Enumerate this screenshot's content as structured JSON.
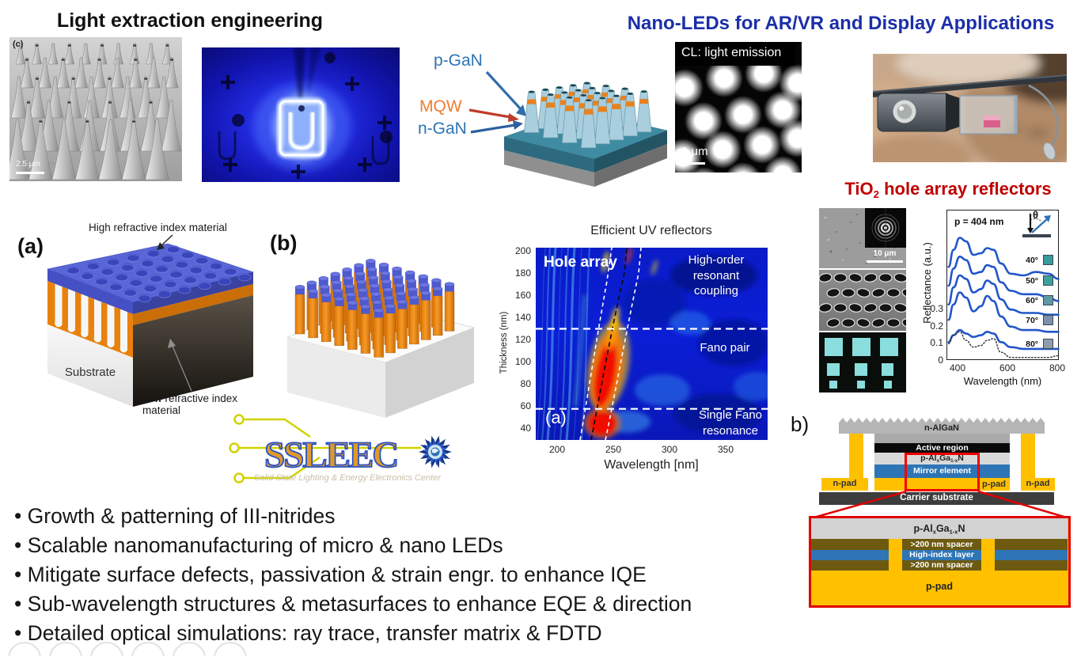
{
  "titles": {
    "left": "Light extraction engineering",
    "right": "Nano-LEDs for AR/VR and Display Applications",
    "tio2_base": "TiO",
    "tio2_sub": "2",
    "tio2_rest": " hole array reflectors"
  },
  "colors": {
    "right_title": "#1b2fa8",
    "tio2_title": "#c00000",
    "label_blue": "#2e74b5",
    "mqw_orange": "#ed7d31",
    "curve_blue": "#2156c8",
    "pad_yellow": "#ffc000",
    "mirror_blue": "#2e75b6",
    "spacer_olive": "#6d5a10",
    "heat_red": "#f01000",
    "cyan_squares": "#8adedd"
  },
  "sem_panel": {
    "label": "(c)",
    "scale": "2.5 μm"
  },
  "nanorod": {
    "p_gan": "p-GaN",
    "mqw": "MQW",
    "n_gan": "n-GaN"
  },
  "cl_panel": {
    "caption": "CL: light emission",
    "scale": "1 μm"
  },
  "tio2_panel": {
    "scale": "10 μm"
  },
  "structure_a": {
    "label": "(a)",
    "high": "High refractive index material",
    "low": "Low refractive index material",
    "substrate": "Substrate"
  },
  "structure_b": {
    "label": "(b)"
  },
  "ssleec": {
    "name": "SSLEEC",
    "tagline": "Solid State Lighting & Energy Electronics Center"
  },
  "device": {
    "label": "b)",
    "n_algan": "n-AlGaN",
    "active": "Active region",
    "p_algan": {
      "a": "p-Al",
      "b": "x",
      "c": "Ga",
      "d": "1-x",
      "e": "N"
    },
    "mirror": "Mirror element",
    "n_pad": "n-pad",
    "p_pad": "p-pad",
    "carrier": "Carrier substrate",
    "spacer_top": ">200 nm spacer",
    "high_index": "High-index layer",
    "spacer_bottom": ">200 nm spacer",
    "p_pad_big": "p-pad"
  },
  "bullets": [
    "Growth & patterning of III-nitrides",
    "Scalable nanomanufacturing of micro & nano LEDs",
    "Mitigate surface defects, passivation & strain engr. to enhance IQE",
    "Sub-wavelength structures & metasurfaces to enhance EQE & direction",
    "Detailed optical simulations: ray trace, transfer matrix & FDTD"
  ],
  "chart_data": [
    {
      "type": "heatmap",
      "title": "Efficient UV reflectors",
      "xlabel": "Wavelength [nm]",
      "ylabel": "Thickness (nm)",
      "xlim": [
        181,
        387
      ],
      "ylim": [
        30,
        203
      ],
      "xticks": [
        200,
        250,
        300,
        350
      ],
      "yticks": [
        40,
        60,
        80,
        100,
        120,
        140,
        160,
        180,
        200
      ],
      "annotations": {
        "array_type": "Hole array",
        "region_top_lines": [
          "High-order",
          "resonant",
          "coupling"
        ],
        "region_mid": "Fano pair",
        "region_bottom_lines": [
          "Single Fano",
          "resonance"
        ],
        "panel": "(a)"
      },
      "dashed_hlines_thickness_nm": [
        130,
        58
      ],
      "hot_region": {
        "wavelength_nm": [
          222,
          255
        ],
        "thickness_nm": [
          30,
          115
        ],
        "description": "high-reflectance (red) lobe following the Fano resonance branch"
      }
    },
    {
      "type": "line",
      "annotation": "p = 404 nm",
      "theta_symbol": "θ",
      "xlabel": "Wavelength (nm)",
      "ylabel": "Reflectance (a.u.)",
      "xticks": [
        400,
        600,
        800
      ],
      "yticks": [
        0,
        0.1,
        0.2,
        0.3
      ],
      "xlim": [
        355,
        805
      ],
      "ylim": [
        0,
        0.88
      ],
      "x": [
        360,
        380,
        405,
        430,
        460,
        490,
        515,
        540,
        570,
        610,
        660,
        710,
        760,
        800
      ],
      "series": [
        {
          "name": "40°",
          "swatch": "#3a9a9c",
          "values": [
            0.55,
            0.65,
            0.72,
            0.7,
            0.62,
            0.63,
            0.66,
            0.65,
            0.57,
            0.51,
            0.5,
            0.52,
            0.51,
            0.48
          ]
        },
        {
          "name": "50°",
          "swatch": "#40a0a0",
          "values": [
            0.44,
            0.54,
            0.61,
            0.59,
            0.51,
            0.52,
            0.56,
            0.55,
            0.46,
            0.41,
            0.39,
            0.39,
            0.37,
            0.35
          ]
        },
        {
          "name": "60°",
          "swatch": "#5e99a4",
          "values": [
            0.33,
            0.43,
            0.5,
            0.48,
            0.4,
            0.42,
            0.47,
            0.45,
            0.36,
            0.3,
            0.28,
            0.28,
            0.27,
            0.27
          ]
        },
        {
          "name": "70°",
          "swatch": "#7e8fae",
          "values": [
            0.24,
            0.33,
            0.4,
            0.37,
            0.29,
            0.32,
            0.38,
            0.35,
            0.26,
            0.2,
            0.18,
            0.18,
            0.17,
            0.17
          ]
        },
        {
          "name": "80°",
          "swatch": "#8e9cab",
          "values": [
            0.11,
            0.15,
            0.18,
            0.16,
            0.14,
            0.15,
            0.17,
            0.16,
            0.11,
            0.08,
            0.07,
            0.07,
            0.07,
            0.07
          ]
        },
        {
          "name": "normal-incidence (dotted)",
          "style": "dotted",
          "swatch": "#555555",
          "values": [
            0.1,
            0.15,
            0.17,
            0.12,
            0.08,
            0.09,
            0.12,
            0.13,
            0.05,
            0.02,
            0.02,
            0.02,
            0.02,
            0.03
          ]
        }
      ],
      "note": "Blue reflectance curves vertically offset, incidence angles 40°–80°."
    }
  ]
}
